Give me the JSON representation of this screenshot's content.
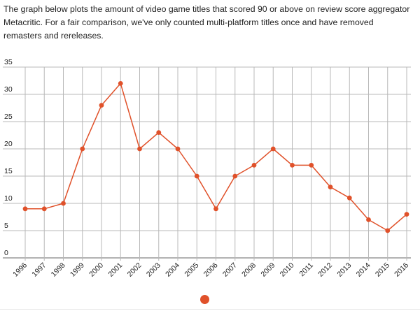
{
  "intro_text": "The graph below plots the amount of video game titles that scored 90 or above on review score aggregator Metacritic. For a fair comparison, we've only counted multi-platform titles once and have removed remasters and rereleases.",
  "colors": {
    "series": "#e0512a",
    "grid": "#b8b8b8",
    "axis": "#666666"
  },
  "chart_data": {
    "type": "line",
    "x": [
      "1996",
      "1997",
      "1998",
      "1999",
      "2000",
      "2001",
      "2002",
      "2003",
      "2004",
      "2005",
      "2006",
      "2007",
      "2008",
      "2009",
      "2010",
      "2011",
      "2012",
      "2013",
      "2014",
      "2015",
      "2016"
    ],
    "series": [
      {
        "values": [
          9,
          9,
          10,
          20,
          28,
          32,
          20,
          23,
          20,
          15,
          9,
          15,
          17,
          20,
          17,
          17,
          13,
          11,
          7,
          5,
          8
        ]
      }
    ],
    "ylim": [
      0,
      35
    ],
    "yticks": [
      0,
      5,
      10,
      15,
      20,
      25,
      30,
      35
    ],
    "grid": true,
    "legend": "bottom-center"
  }
}
